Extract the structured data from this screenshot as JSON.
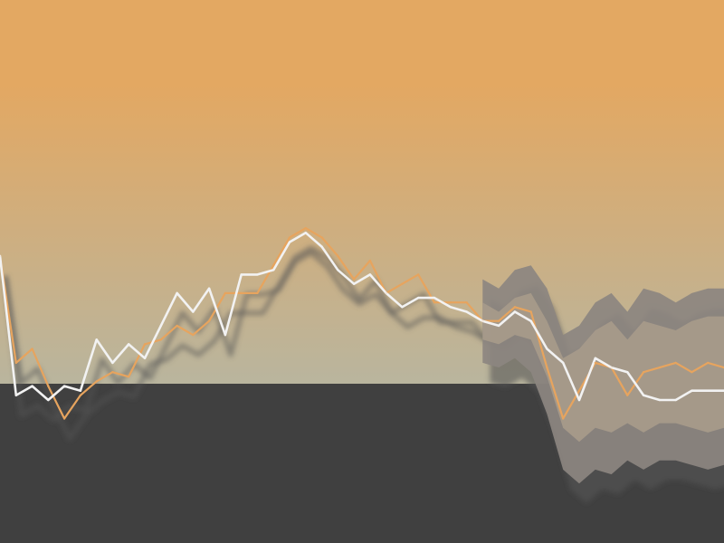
{
  "colors": {
    "sky_top": "#E3A862",
    "sky_bottom": "#B9B59E",
    "ground": "#404040",
    "actual_line": "#E7A45E",
    "model_line": "#F2F2F2",
    "band_outer": "#8C8680",
    "band_inner": "#A69A8A",
    "shadow": "#555555"
  },
  "chart_data": {
    "type": "line",
    "title": "",
    "xlabel": "",
    "ylabel": "",
    "grid": false,
    "legend": "none",
    "x": [
      0,
      1,
      2,
      3,
      4,
      5,
      6,
      7,
      8,
      9,
      10,
      11,
      12,
      13,
      14,
      15,
      16,
      17,
      18,
      19,
      20,
      21,
      22,
      23,
      24,
      25,
      26,
      27,
      28,
      29,
      30,
      31,
      32,
      33,
      34,
      35,
      36,
      37,
      38,
      39,
      40,
      41,
      42,
      43,
      44,
      45
    ],
    "xlim": [
      0,
      45
    ],
    "ylim": [
      -3.4,
      4.2
    ],
    "series": [
      {
        "name": "",
        "role": "actual",
        "values": [
          2.0,
          -0.3,
          0.0,
          -0.8,
          -1.5,
          -1.0,
          -0.7,
          -0.5,
          -0.6,
          0.1,
          0.2,
          0.5,
          0.3,
          0.6,
          1.2,
          1.2,
          1.2,
          1.8,
          2.4,
          2.6,
          2.4,
          2.0,
          1.5,
          1.9,
          1.2,
          1.4,
          1.6,
          1.0,
          1.0,
          1.0,
          0.6,
          0.6,
          0.9,
          0.8,
          -0.4,
          -1.5,
          -0.9,
          -0.3,
          -0.4,
          -1.0,
          -0.5,
          -0.4,
          -0.3,
          -0.5,
          -0.3,
          -0.4
        ]
      },
      {
        "name": "",
        "role": "model",
        "values": [
          2.0,
          -1.0,
          -0.8,
          -1.1,
          -0.8,
          -0.9,
          0.2,
          -0.3,
          0.1,
          -0.2,
          0.5,
          1.2,
          0.8,
          1.3,
          0.3,
          1.6,
          1.6,
          1.7,
          2.3,
          2.5,
          2.2,
          1.7,
          1.4,
          1.6,
          1.2,
          0.9,
          1.1,
          1.1,
          0.9,
          0.8,
          0.6,
          0.5,
          0.8,
          0.6,
          0.0,
          -0.3,
          -1.1,
          -0.2,
          -0.4,
          -0.5,
          -1.0,
          -1.1,
          -1.1,
          -0.9,
          -0.9,
          -0.9
        ]
      }
    ],
    "forecast_band": {
      "x_start": 30,
      "outer_upper": [
        1.5,
        1.3,
        1.7,
        1.8,
        1.3,
        0.3,
        0.5,
        1.0,
        1.2,
        0.8,
        1.3,
        1.2,
        1.0,
        1.2,
        1.3,
        1.3
      ],
      "outer_lower": [
        -0.3,
        -0.4,
        -0.2,
        -0.5,
        -1.4,
        -2.6,
        -2.9,
        -2.6,
        -2.7,
        -2.4,
        -2.6,
        -2.4,
        -2.4,
        -2.5,
        -2.6,
        -2.5
      ],
      "inner_upper": [
        1.0,
        0.8,
        1.1,
        1.2,
        0.6,
        -0.2,
        0.0,
        0.4,
        0.6,
        0.2,
        0.6,
        0.5,
        0.4,
        0.6,
        0.7,
        0.7
      ],
      "inner_lower": [
        0.2,
        0.1,
        0.3,
        0.2,
        -0.6,
        -1.7,
        -2.0,
        -1.7,
        -1.8,
        -1.6,
        -1.8,
        -1.6,
        -1.6,
        -1.7,
        -1.8,
        -1.7
      ]
    }
  }
}
